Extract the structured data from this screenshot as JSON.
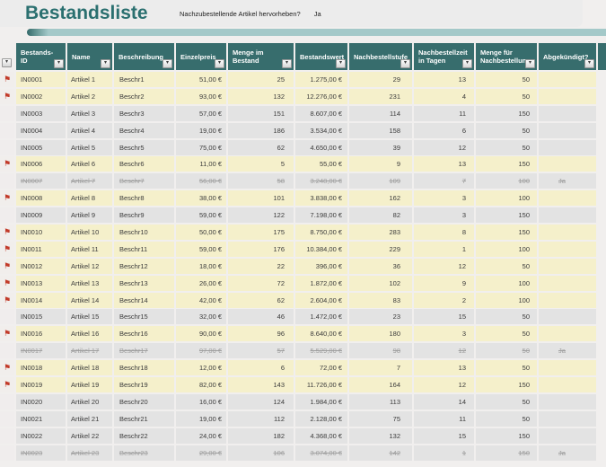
{
  "page": {
    "title": "Bestandsliste",
    "highlight_label": "Nachzubestellende Artikel hervorheben?",
    "highlight_value": "Ja"
  },
  "colors": {
    "header_teal": "#376d6d",
    "title_teal": "#2b7070",
    "accent_band": "#a4c9c9",
    "highlight_row": "#f5f0cb",
    "normal_row": "#e3e3e3",
    "flag_red": "#c23b2a"
  },
  "table": {
    "columns": [
      {
        "label": "",
        "key": "flag"
      },
      {
        "label": "Bestands-ID",
        "key": "id"
      },
      {
        "label": "Name",
        "key": "name"
      },
      {
        "label": "Beschreibung",
        "key": "desc"
      },
      {
        "label": "Einzelpreis",
        "key": "price"
      },
      {
        "label": "Menge im Bestand",
        "key": "qty"
      },
      {
        "label": "Bestandswert",
        "key": "value"
      },
      {
        "label": "Nachbestellstufe",
        "key": "level"
      },
      {
        "label": "Nachbestellzeit in Tagen",
        "key": "time"
      },
      {
        "label": "Menge für Nachbestellung",
        "key": "reorder"
      },
      {
        "label": "Abgekündigt?",
        "key": "disc"
      }
    ],
    "filter_icon": "▾",
    "flag_icon": "⚑",
    "rows": [
      {
        "flagged": true,
        "discontinued": false,
        "id": "IN0001",
        "name": "Artikel 1",
        "desc": "Beschr1",
        "price": "51,00 €",
        "qty": "25",
        "value": "1.275,00 €",
        "level": "29",
        "time": "13",
        "reorder": "50",
        "disc": ""
      },
      {
        "flagged": true,
        "discontinued": false,
        "id": "IN0002",
        "name": "Artikel 2",
        "desc": "Beschr2",
        "price": "93,00 €",
        "qty": "132",
        "value": "12.276,00 €",
        "level": "231",
        "time": "4",
        "reorder": "50",
        "disc": ""
      },
      {
        "flagged": false,
        "discontinued": false,
        "id": "IN0003",
        "name": "Artikel 3",
        "desc": "Beschr3",
        "price": "57,00 €",
        "qty": "151",
        "value": "8.607,00 €",
        "level": "114",
        "time": "11",
        "reorder": "150",
        "disc": ""
      },
      {
        "flagged": false,
        "discontinued": false,
        "id": "IN0004",
        "name": "Artikel 4",
        "desc": "Beschr4",
        "price": "19,00 €",
        "qty": "186",
        "value": "3.534,00 €",
        "level": "158",
        "time": "6",
        "reorder": "50",
        "disc": ""
      },
      {
        "flagged": false,
        "discontinued": false,
        "id": "IN0005",
        "name": "Artikel 5",
        "desc": "Beschr5",
        "price": "75,00 €",
        "qty": "62",
        "value": "4.650,00 €",
        "level": "39",
        "time": "12",
        "reorder": "50",
        "disc": ""
      },
      {
        "flagged": true,
        "discontinued": false,
        "id": "IN0006",
        "name": "Artikel 6",
        "desc": "Beschr6",
        "price": "11,00 €",
        "qty": "5",
        "value": "55,00 €",
        "level": "9",
        "time": "13",
        "reorder": "150",
        "disc": ""
      },
      {
        "flagged": false,
        "discontinued": true,
        "id": "IN0007",
        "name": "Artikel 7",
        "desc": "Beschr7",
        "price": "56,00 €",
        "qty": "58",
        "value": "3.248,00 €",
        "level": "109",
        "time": "7",
        "reorder": "100",
        "disc": "Ja"
      },
      {
        "flagged": true,
        "discontinued": false,
        "id": "IN0008",
        "name": "Artikel 8",
        "desc": "Beschr8",
        "price": "38,00 €",
        "qty": "101",
        "value": "3.838,00 €",
        "level": "162",
        "time": "3",
        "reorder": "100",
        "disc": ""
      },
      {
        "flagged": false,
        "discontinued": false,
        "id": "IN0009",
        "name": "Artikel 9",
        "desc": "Beschr9",
        "price": "59,00 €",
        "qty": "122",
        "value": "7.198,00 €",
        "level": "82",
        "time": "3",
        "reorder": "150",
        "disc": ""
      },
      {
        "flagged": true,
        "discontinued": false,
        "id": "IN0010",
        "name": "Artikel 10",
        "desc": "Beschr10",
        "price": "50,00 €",
        "qty": "175",
        "value": "8.750,00 €",
        "level": "283",
        "time": "8",
        "reorder": "150",
        "disc": ""
      },
      {
        "flagged": true,
        "discontinued": false,
        "id": "IN0011",
        "name": "Artikel 11",
        "desc": "Beschr11",
        "price": "59,00 €",
        "qty": "176",
        "value": "10.384,00 €",
        "level": "229",
        "time": "1",
        "reorder": "100",
        "disc": ""
      },
      {
        "flagged": true,
        "discontinued": false,
        "id": "IN0012",
        "name": "Artikel 12",
        "desc": "Beschr12",
        "price": "18,00 €",
        "qty": "22",
        "value": "396,00 €",
        "level": "36",
        "time": "12",
        "reorder": "50",
        "disc": ""
      },
      {
        "flagged": true,
        "discontinued": false,
        "id": "IN0013",
        "name": "Artikel 13",
        "desc": "Beschr13",
        "price": "26,00 €",
        "qty": "72",
        "value": "1.872,00 €",
        "level": "102",
        "time": "9",
        "reorder": "100",
        "disc": ""
      },
      {
        "flagged": true,
        "discontinued": false,
        "id": "IN0014",
        "name": "Artikel 14",
        "desc": "Beschr14",
        "price": "42,00 €",
        "qty": "62",
        "value": "2.604,00 €",
        "level": "83",
        "time": "2",
        "reorder": "100",
        "disc": ""
      },
      {
        "flagged": false,
        "discontinued": false,
        "id": "IN0015",
        "name": "Artikel 15",
        "desc": "Beschr15",
        "price": "32,00 €",
        "qty": "46",
        "value": "1.472,00 €",
        "level": "23",
        "time": "15",
        "reorder": "50",
        "disc": ""
      },
      {
        "flagged": true,
        "discontinued": false,
        "id": "IN0016",
        "name": "Artikel 16",
        "desc": "Beschr16",
        "price": "90,00 €",
        "qty": "96",
        "value": "8.640,00 €",
        "level": "180",
        "time": "3",
        "reorder": "50",
        "disc": ""
      },
      {
        "flagged": false,
        "discontinued": true,
        "id": "IN0017",
        "name": "Artikel 17",
        "desc": "Beschr17",
        "price": "97,00 €",
        "qty": "57",
        "value": "5.529,00 €",
        "level": "98",
        "time": "12",
        "reorder": "50",
        "disc": "Ja"
      },
      {
        "flagged": true,
        "discontinued": false,
        "id": "IN0018",
        "name": "Artikel 18",
        "desc": "Beschr18",
        "price": "12,00 €",
        "qty": "6",
        "value": "72,00 €",
        "level": "7",
        "time": "13",
        "reorder": "50",
        "disc": ""
      },
      {
        "flagged": true,
        "discontinued": false,
        "id": "IN0019",
        "name": "Artikel 19",
        "desc": "Beschr19",
        "price": "82,00 €",
        "qty": "143",
        "value": "11.726,00 €",
        "level": "164",
        "time": "12",
        "reorder": "150",
        "disc": ""
      },
      {
        "flagged": false,
        "discontinued": false,
        "id": "IN0020",
        "name": "Artikel 20",
        "desc": "Beschr20",
        "price": "16,00 €",
        "qty": "124",
        "value": "1.984,00 €",
        "level": "113",
        "time": "14",
        "reorder": "50",
        "disc": ""
      },
      {
        "flagged": false,
        "discontinued": false,
        "id": "IN0021",
        "name": "Artikel 21",
        "desc": "Beschr21",
        "price": "19,00 €",
        "qty": "112",
        "value": "2.128,00 €",
        "level": "75",
        "time": "11",
        "reorder": "50",
        "disc": ""
      },
      {
        "flagged": false,
        "discontinued": false,
        "id": "IN0022",
        "name": "Artikel 22",
        "desc": "Beschr22",
        "price": "24,00 €",
        "qty": "182",
        "value": "4.368,00 €",
        "level": "132",
        "time": "15",
        "reorder": "150",
        "disc": ""
      },
      {
        "flagged": false,
        "discontinued": true,
        "id": "IN0023",
        "name": "Artikel 23",
        "desc": "Beschr23",
        "price": "29,00 €",
        "qty": "106",
        "value": "3.074,00 €",
        "level": "142",
        "time": "1",
        "reorder": "150",
        "disc": "Ja"
      }
    ]
  }
}
